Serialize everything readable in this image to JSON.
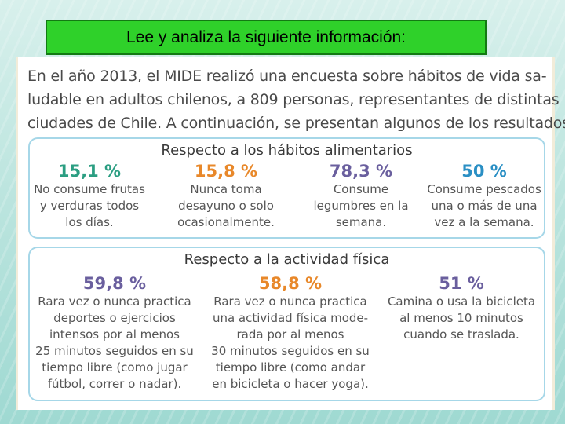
{
  "title": "Lee y analiza la siguiente  información:",
  "intro": [
    "En el año 2013, el MIDE realizó una encuesta sobre hábitos de vida sa-",
    "ludable en adultos chilenos, a 809 personas, representantes de distintas",
    "ciudades de Chile. A continuación, se presentan algunos de los resultados."
  ],
  "sections": [
    {
      "title": "Respecto a los hábitos alimentarios",
      "stats": [
        {
          "value": "15,1 %",
          "color": "#2b9e82",
          "lines": [
            "No consume frutas",
            "y verduras todos",
            "los días."
          ]
        },
        {
          "value": "15,8 %",
          "color": "#e8882a",
          "lines": [
            "Nunca toma",
            "desayuno o solo",
            "ocasionalmente."
          ]
        },
        {
          "value": "78,3 %",
          "color": "#6a5f9e",
          "lines": [
            "Consume",
            "legumbres en la",
            "semana."
          ]
        },
        {
          "value": "50 %",
          "color": "#2a8fc4",
          "lines": [
            "Consume pescados",
            "una o más de una",
            "vez a la semana."
          ]
        }
      ]
    },
    {
      "title": "Respecto a la actividad física",
      "stats": [
        {
          "value": "59,8 %",
          "color": "#6a5f9e",
          "lines": [
            "Rara vez o nunca practica",
            "deportes o ejercicios",
            "intensos por al menos",
            "25 minutos seguidos en su",
            "tiempo libre (como jugar",
            "fútbol, correr o nadar)."
          ]
        },
        {
          "value": "58,8 %",
          "color": "#e8882a",
          "lines": [
            "Rara vez o nunca practica",
            "una actividad física mode-",
            "rada por al menos",
            "30 minutos seguidos en su",
            "tiempo libre (como andar",
            "en bicicleta o hacer yoga)."
          ]
        },
        {
          "value": "51 %",
          "color": "#6a5f9e",
          "lines": [
            "Camina o usa la bicicleta",
            "al menos 10 minutos",
            "cuando se traslada."
          ]
        }
      ]
    }
  ]
}
